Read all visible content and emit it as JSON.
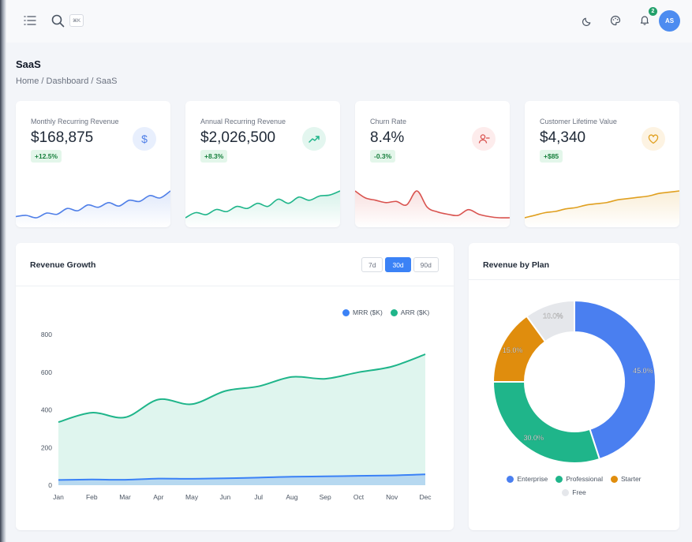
{
  "topbar": {
    "kbd_hint": "⌘K",
    "notification_count": "2",
    "avatar_initials": "AS"
  },
  "page": {
    "title": "SaaS",
    "breadcrumb": "Home / Dashboard / SaaS"
  },
  "stats": [
    {
      "label": "Monthly Recurring Revenue",
      "value": "$168,875",
      "delta": "+12.5%",
      "icon": "dollar-icon",
      "color": "#4f7fe8",
      "icon_bg": "#e8effd",
      "spark": [
        8,
        9,
        7,
        11,
        10,
        15,
        13,
        18,
        16,
        20,
        17,
        22,
        21,
        26,
        24,
        30
      ]
    },
    {
      "label": "Annual Recurring Revenue",
      "value": "$2,026,500",
      "delta": "+8.3%",
      "icon": "trending-up-icon",
      "color": "#1fb58a",
      "icon_bg": "#e3f6ef",
      "spark": [
        6,
        11,
        9,
        14,
        12,
        17,
        15,
        20,
        17,
        24,
        20,
        26,
        23,
        27,
        28,
        32
      ]
    },
    {
      "label": "Churn Rate",
      "value": "8.4%",
      "delta": "-0.3%",
      "icon": "user-minus-icon",
      "color": "#d9534f",
      "icon_bg": "#fdecec",
      "spark": [
        30,
        24,
        22,
        20,
        21,
        18,
        30,
        16,
        12,
        10,
        9,
        14,
        10,
        8,
        7,
        7
      ]
    },
    {
      "label": "Customer Lifetime Value",
      "value": "$4,340",
      "delta": "+$85",
      "icon": "heart-icon",
      "color": "#e0a020",
      "icon_bg": "#fdf3e2",
      "spark": [
        10,
        12,
        14,
        15,
        17,
        18,
        20,
        21,
        22,
        24,
        25,
        26,
        27,
        29,
        30,
        31
      ]
    }
  ],
  "revenue_growth": {
    "title": "Revenue Growth",
    "ranges": [
      "7d",
      "30d",
      "90d"
    ],
    "active_range": "30d"
  },
  "revenue_by_plan": {
    "title": "Revenue by Plan"
  },
  "chart_data": [
    {
      "type": "area",
      "title": "Revenue Growth",
      "categories": [
        "Jan",
        "Feb",
        "Mar",
        "Apr",
        "May",
        "Jun",
        "Jul",
        "Aug",
        "Sep",
        "Oct",
        "Nov",
        "Dec"
      ],
      "series": [
        {
          "name": "MRR ($K)",
          "color": "#3b82f6",
          "values": [
            28,
            30,
            29,
            35,
            34,
            37,
            40,
            45,
            47,
            50,
            52,
            58
          ]
        },
        {
          "name": "ARR ($K)",
          "color": "#1fb58a",
          "values": [
            335,
            385,
            360,
            455,
            430,
            500,
            525,
            575,
            565,
            600,
            630,
            695
          ]
        }
      ],
      "ylim": [
        0,
        800
      ],
      "yticks": [
        0,
        200,
        400,
        600,
        800
      ],
      "legend": "top-right",
      "grid": false
    },
    {
      "type": "pie",
      "title": "Revenue by Plan",
      "slices": [
        {
          "label": "Enterprise",
          "value": 45.0,
          "display": "45.0%",
          "color": "#4a7ff0"
        },
        {
          "label": "Professional",
          "value": 30.0,
          "display": "30.0%",
          "color": "#1fb58a"
        },
        {
          "label": "Starter",
          "value": 15.0,
          "display": "15.0%",
          "color": "#e08d0d"
        },
        {
          "label": "Free",
          "value": 10.0,
          "display": "10.0%",
          "color": "#e5e7eb"
        }
      ],
      "legend": "bottom"
    }
  ]
}
